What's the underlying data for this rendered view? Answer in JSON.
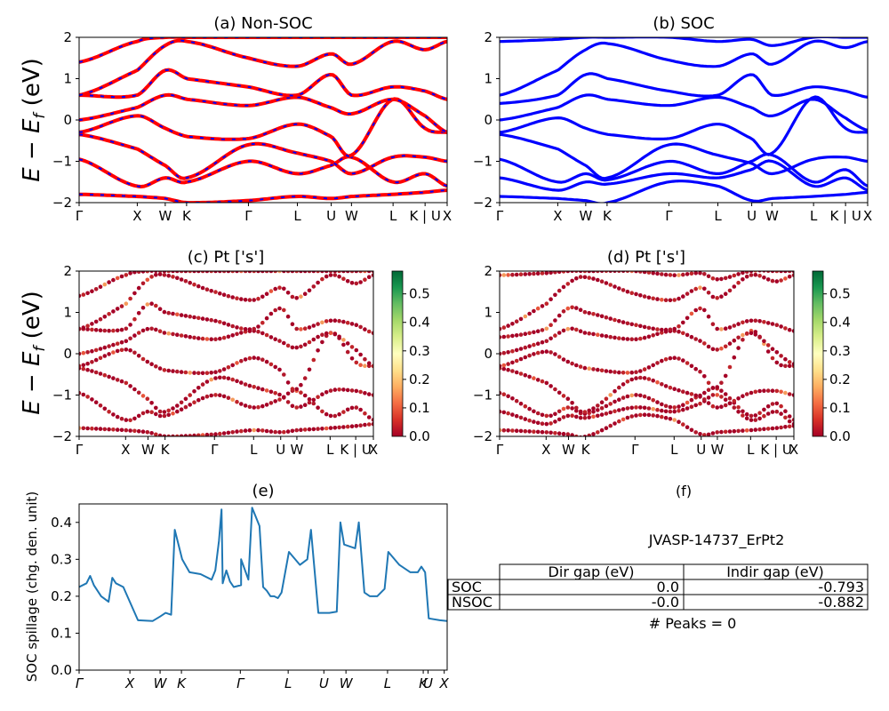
{
  "panel_a": {
    "title": "(a) Non-SOC",
    "ylabel": "E − E_f (eV)",
    "kpath": [
      "Γ",
      "X",
      "W",
      "K",
      "Γ",
      "L",
      "U",
      "W",
      "L",
      "K | U",
      "X"
    ],
    "yticks": [
      "2",
      "1",
      "0",
      "−1",
      "−2"
    ]
  },
  "panel_b": {
    "title": "(b) SOC",
    "kpath": [
      "Γ",
      "X",
      "W",
      "K",
      "Γ",
      "L",
      "U",
      "W",
      "L",
      "K | U",
      "X"
    ],
    "yticks": [
      "2",
      "1",
      "0",
      "−1",
      "−2"
    ]
  },
  "panel_c": {
    "title": "(c)  Pt ['s']",
    "ylabel": "E − E_f (eV)",
    "kpath": [
      "Γ",
      "X",
      "W",
      "K",
      "Γ",
      "L",
      "U",
      "W",
      "L",
      "K | U",
      "X"
    ],
    "yticks": [
      "2",
      "1",
      "0",
      "−1",
      "−2"
    ],
    "colorbar_ticks": [
      "0.5",
      "0.4",
      "0.3",
      "0.2",
      "0.1",
      "0.0"
    ]
  },
  "panel_d": {
    "title": "(d) Pt ['s']",
    "kpath": [
      "Γ",
      "X",
      "W",
      "K",
      "Γ",
      "L",
      "U",
      "W",
      "L",
      "K | U",
      "X"
    ],
    "yticks": [
      "2",
      "1",
      "0",
      "−1",
      "−2"
    ],
    "colorbar_ticks": [
      "0.5",
      "0.4",
      "0.3",
      "0.2",
      "0.1",
      "0.0"
    ]
  },
  "panel_e": {
    "title": "(e)",
    "ylabel": "SOC spillage (chg. den. unit)",
    "kpath": [
      "Γ",
      "X",
      "W",
      "K",
      "Γ",
      "L",
      "U",
      "W",
      "L",
      "K",
      "U",
      "X"
    ],
    "yticks": [
      "0.4",
      "0.3",
      "0.2",
      "0.1",
      "0.0"
    ]
  },
  "panel_f": {
    "title": "(f)",
    "material": "JVASP-14737_ErPt2",
    "table": {
      "headers": [
        "Dir gap (eV)",
        "Indir gap (eV)"
      ],
      "rows": [
        {
          "label": "SOC",
          "dir": "0.0",
          "indir": "-0.793"
        },
        {
          "label": "NSOC",
          "dir": "-0.0",
          "indir": "-0.882"
        }
      ]
    },
    "peaks": "# Peaks = 0"
  },
  "colors": {
    "nonsoc_line": "#ff0000",
    "nonsoc_dash": "#0000ff",
    "soc_line": "#0000ff",
    "spillage_line": "#1f77b4",
    "cmap_low": "#a50026",
    "cmap_mid": "#ffffbf",
    "cmap_high": "#006837"
  },
  "chart_data": [
    {
      "panel": "a",
      "type": "line",
      "title": "(a) Non-SOC",
      "ylabel": "E − E_f (eV)",
      "ylim": [
        -2,
        2
      ],
      "x_ticks": [
        "Γ",
        "X",
        "W",
        "K",
        "Γ",
        "L",
        "U",
        "W",
        "L",
        "K | U",
        "X"
      ],
      "kpath_positions": [
        0,
        0.158,
        0.234,
        0.292,
        0.46,
        0.593,
        0.685,
        0.74,
        0.853,
        0.94,
        1.0
      ],
      "series": [
        {
          "values": [
            -1.8,
            -1.85,
            -1.9,
            -2.0,
            -1.95,
            -1.85,
            -1.9,
            -1.85,
            -1.8,
            -1.75,
            -1.7
          ]
        },
        {
          "values": [
            -0.95,
            -1.6,
            -1.4,
            -1.5,
            -1.0,
            -1.3,
            -1.1,
            -0.9,
            -1.5,
            -1.3,
            -1.6
          ]
        },
        {
          "values": [
            -0.35,
            -0.7,
            -1.1,
            -1.4,
            -0.6,
            -0.8,
            -1.0,
            -1.3,
            -0.9,
            -0.9,
            -1.0
          ]
        },
        {
          "values": [
            -0.3,
            0.1,
            -0.2,
            -0.4,
            -0.45,
            -0.1,
            -0.4,
            -0.85,
            0.5,
            -0.2,
            -0.3
          ]
        },
        {
          "values": [
            0.0,
            0.3,
            0.6,
            0.5,
            0.35,
            0.55,
            0.3,
            0.15,
            0.5,
            0.1,
            -0.3
          ]
        },
        {
          "values": [
            0.6,
            0.6,
            1.2,
            1.0,
            0.8,
            0.6,
            1.1,
            0.6,
            0.8,
            0.7,
            0.5
          ]
        },
        {
          "values": [
            0.6,
            1.2,
            1.8,
            1.9,
            1.5,
            1.3,
            1.6,
            1.35,
            1.9,
            1.7,
            1.9
          ]
        },
        {
          "values": [
            1.4,
            1.9,
            2.0,
            2.0,
            2.0,
            2.0,
            2.0,
            2.0,
            2.0,
            2.0,
            2.0
          ]
        }
      ]
    },
    {
      "panel": "b",
      "type": "line",
      "title": "(b) SOC",
      "ylim": [
        -2,
        2
      ],
      "x_ticks": [
        "Γ",
        "X",
        "W",
        "K",
        "Γ",
        "L",
        "U",
        "W",
        "L",
        "K | U",
        "X"
      ],
      "kpath_positions": [
        0,
        0.158,
        0.234,
        0.292,
        0.46,
        0.593,
        0.685,
        0.74,
        0.853,
        0.94,
        1.0
      ],
      "series": [
        {
          "values": [
            -1.85,
            -1.9,
            -1.95,
            -2.0,
            -1.5,
            -1.6,
            -1.95,
            -1.9,
            -1.85,
            -1.8,
            -1.75
          ]
        },
        {
          "values": [
            -1.4,
            -1.7,
            -1.5,
            -1.55,
            -1.3,
            -1.4,
            -1.2,
            -1.0,
            -1.6,
            -1.4,
            -1.7
          ]
        },
        {
          "values": [
            -0.95,
            -1.5,
            -1.3,
            -1.45,
            -1.0,
            -1.3,
            -1.0,
            -0.85,
            -1.5,
            -1.2,
            -1.6
          ]
        },
        {
          "values": [
            -0.35,
            -0.7,
            -1.1,
            -1.4,
            -0.6,
            -0.85,
            -1.05,
            -1.3,
            -0.95,
            -0.9,
            -1.0
          ]
        },
        {
          "values": [
            -0.3,
            0.05,
            -0.2,
            -0.35,
            -0.45,
            -0.1,
            -0.45,
            -0.8,
            0.55,
            -0.2,
            -0.3
          ]
        },
        {
          "values": [
            0.0,
            0.3,
            0.6,
            0.5,
            0.35,
            0.55,
            0.3,
            0.1,
            0.5,
            0.05,
            -0.25
          ]
        },
        {
          "values": [
            0.4,
            0.6,
            1.1,
            1.0,
            0.7,
            0.6,
            1.1,
            0.6,
            0.8,
            0.7,
            0.55
          ]
        },
        {
          "values": [
            0.6,
            1.2,
            1.7,
            1.85,
            1.45,
            1.3,
            1.6,
            1.35,
            1.9,
            1.75,
            1.9
          ]
        },
        {
          "values": [
            1.9,
            1.95,
            2.0,
            2.0,
            2.0,
            1.9,
            1.95,
            1.8,
            2.0,
            2.0,
            2.0
          ]
        }
      ]
    },
    {
      "panel": "c",
      "type": "scatter",
      "title": "(c)  Pt ['s']",
      "ylabel": "E − E_f (eV)",
      "ylim": [
        -2,
        2
      ],
      "colorbar_range": [
        0.0,
        0.58
      ],
      "x_ticks": [
        "Γ",
        "X",
        "W",
        "K",
        "Γ",
        "L",
        "U",
        "W",
        "L",
        "K | U",
        "X"
      ],
      "note": "same bands as panel (a), coloured by Pt s projection (mostly ~0.0-0.1, a few points up to ~0.3)"
    },
    {
      "panel": "d",
      "type": "scatter",
      "title": "(d) Pt ['s']",
      "ylim": [
        -2,
        2
      ],
      "colorbar_range": [
        0.0,
        0.58
      ],
      "x_ticks": [
        "Γ",
        "X",
        "W",
        "K",
        "Γ",
        "L",
        "U",
        "W",
        "L",
        "K | U",
        "X"
      ],
      "note": "same bands as panel (b), coloured by Pt s projection"
    },
    {
      "panel": "e",
      "type": "line",
      "title": "(e)",
      "ylabel": "SOC spillage (chg. den. unit)",
      "ylim": [
        0.0,
        0.45
      ],
      "x_ticks": [
        "Γ",
        "X",
        "W",
        "K",
        "Γ",
        "L",
        "U",
        "W",
        "L",
        "K",
        "U",
        "X"
      ],
      "series": [
        {
          "x": [
            0,
            0.02,
            0.03,
            0.04,
            0.06,
            0.08,
            0.09,
            0.1,
            0.12,
            0.16,
            0.2,
            0.22,
            0.235,
            0.25,
            0.26,
            0.28,
            0.3,
            0.33,
            0.36,
            0.37,
            0.38,
            0.387,
            0.39,
            0.4,
            0.41,
            0.42,
            0.44,
            0.44,
            0.46,
            0.47,
            0.49,
            0.5,
            0.51,
            0.52,
            0.525,
            0.53,
            0.54,
            0.55,
            0.57,
            0.6,
            0.62,
            0.63,
            0.65,
            0.68,
            0.7,
            0.71,
            0.72,
            0.75,
            0.76,
            0.775,
            0.79,
            0.81,
            0.83,
            0.84,
            0.87,
            0.9,
            0.92,
            0.93,
            0.94,
            0.95,
            0.98,
            1.0
          ],
          "values": [
            0.225,
            0.235,
            0.255,
            0.23,
            0.2,
            0.185,
            0.25,
            0.235,
            0.225,
            0.135,
            0.133,
            0.145,
            0.155,
            0.15,
            0.38,
            0.3,
            0.265,
            0.26,
            0.245,
            0.27,
            0.35,
            0.435,
            0.235,
            0.27,
            0.24,
            0.225,
            0.23,
            0.3,
            0.245,
            0.44,
            0.39,
            0.225,
            0.215,
            0.2,
            0.2,
            0.2,
            0.195,
            0.21,
            0.32,
            0.285,
            0.3,
            0.38,
            0.155,
            0.155,
            0.158,
            0.4,
            0.34,
            0.33,
            0.4,
            0.21,
            0.2,
            0.2,
            0.22,
            0.32,
            0.285,
            0.265,
            0.265,
            0.28,
            0.265,
            0.14,
            0.135,
            0.133
          ]
        }
      ]
    }
  ]
}
